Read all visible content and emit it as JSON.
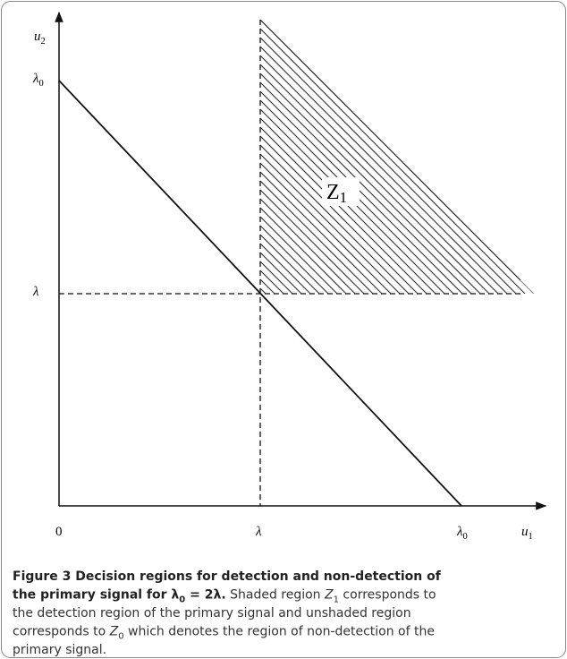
{
  "figure": {
    "axis_labels": {
      "y_axis": {
        "text": "u",
        "sub": "2"
      },
      "y_lambda0": {
        "text": "λ",
        "sub": "0"
      },
      "y_lambda": {
        "text": "λ"
      },
      "origin": {
        "text": "0"
      },
      "x_lambda": {
        "text": "λ"
      },
      "x_lambda0": {
        "text": "λ",
        "sub": "0"
      },
      "x_axis": {
        "text": "u",
        "sub": "1"
      }
    },
    "region_label": {
      "text": "Z",
      "sub": "1"
    },
    "caption": {
      "lines": [
        [
          {
            "text": "Figure 3 Decision regions for detection and non-detection of",
            "style": "bold"
          }
        ],
        [
          {
            "text": "the primary signal for λ",
            "style": "bold"
          },
          {
            "text": "0",
            "style": "sub-bold"
          },
          {
            "text": " = 2λ.",
            "style": "bold"
          },
          {
            "text": " Shaded region ",
            "style": "normal"
          },
          {
            "text": "Z",
            "style": "italic"
          },
          {
            "text": "1",
            "style": "sub"
          },
          {
            "text": " corresponds to",
            "style": "normal"
          }
        ],
        [
          {
            "text": "the detection region of the primary signal and unshaded region",
            "style": "normal"
          }
        ],
        [
          {
            "text": "corresponds to ",
            "style": "normal"
          },
          {
            "text": "Z",
            "style": "italic"
          },
          {
            "text": "0",
            "style": "sub"
          },
          {
            "text": " which denotes the region of non-detection of the",
            "style": "normal"
          }
        ],
        [
          {
            "text": "primary signal.",
            "style": "normal"
          }
        ]
      ]
    }
  }
}
